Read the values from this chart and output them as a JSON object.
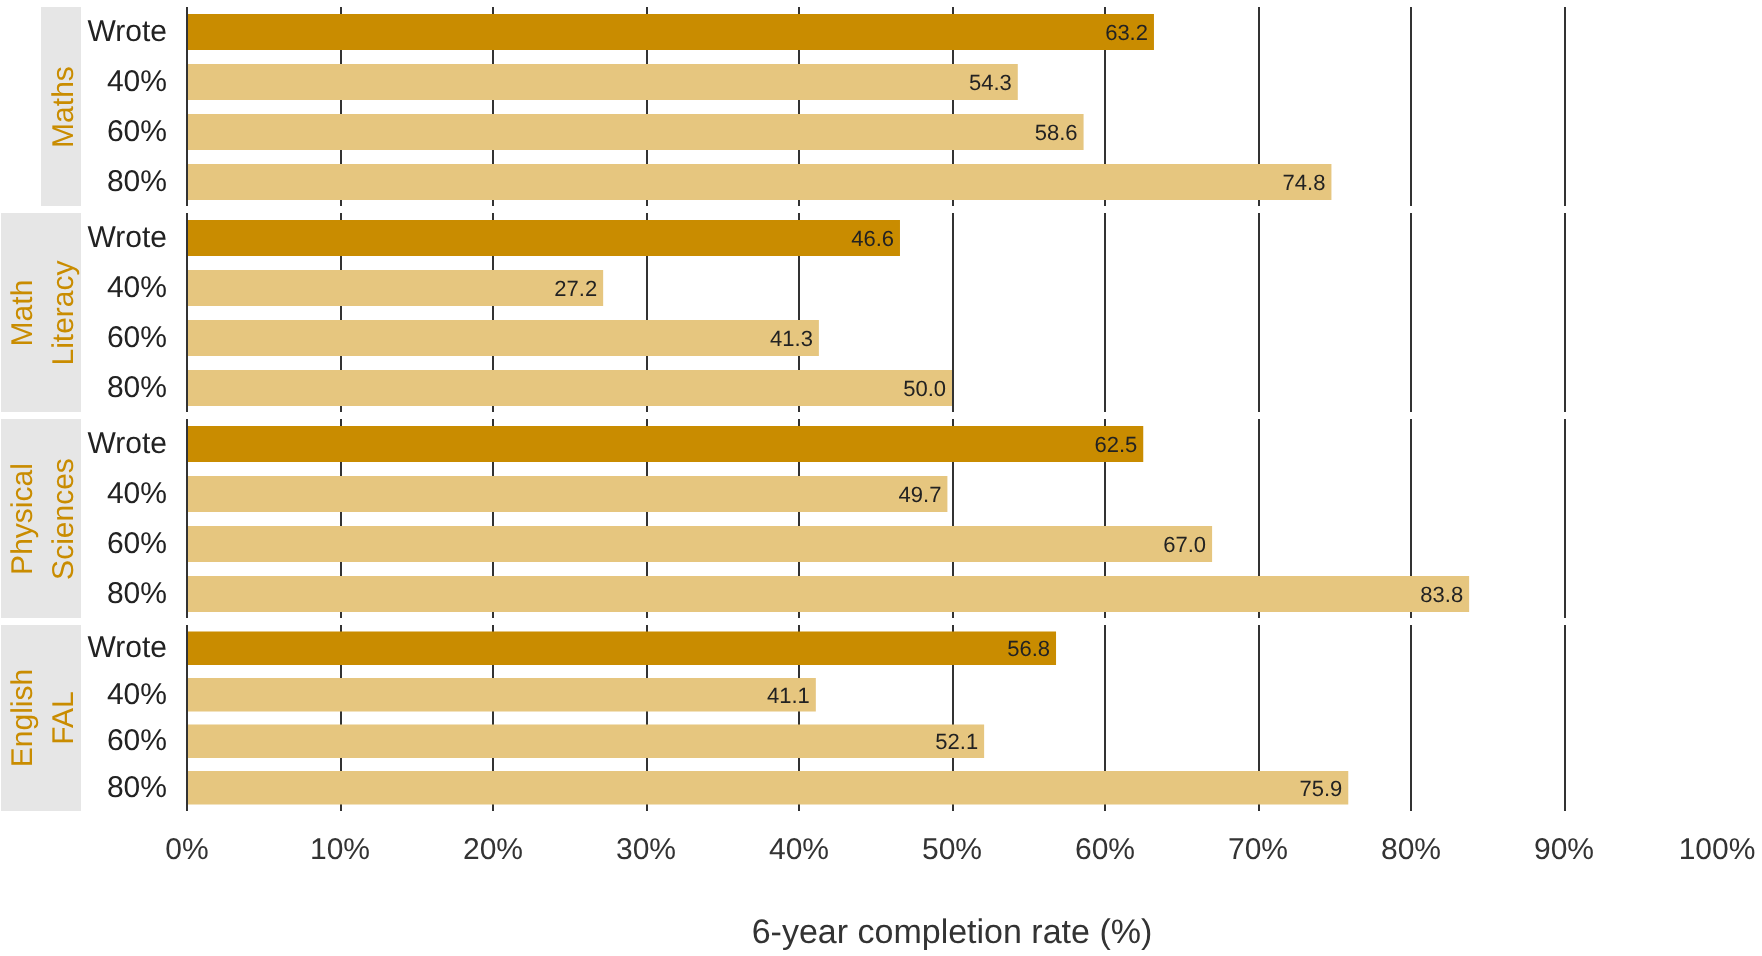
{
  "chart_data": [
    {
      "type": "bar",
      "orientation": "horizontal",
      "title": "Maths",
      "categories": [
        "Wrote",
        "40%",
        "60%",
        "80%"
      ],
      "values": [
        63.2,
        54.3,
        58.6,
        74.8
      ],
      "value_labels": [
        "63.2",
        "54.3",
        "58.6",
        "74.8"
      ],
      "colors": [
        "#c98c00",
        "#e6c67f",
        "#e6c67f",
        "#e6c67f"
      ],
      "xlim": [
        0,
        100
      ],
      "xticks": [
        0,
        10,
        20,
        30,
        40,
        50,
        60,
        70,
        80,
        90,
        100
      ],
      "grid": "x",
      "tick_labels": "y"
    },
    {
      "type": "bar",
      "orientation": "horizontal",
      "title": "Math Literacy",
      "categories": [
        "Wrote",
        "40%",
        "60%",
        "80%"
      ],
      "values": [
        46.6,
        27.2,
        41.3,
        50.0
      ],
      "value_labels": [
        "46.6",
        "27.2",
        "41.3",
        "50.0"
      ],
      "colors": [
        "#c98c00",
        "#e6c67f",
        "#e6c67f",
        "#e6c67f"
      ],
      "xlim": [
        0,
        100
      ],
      "xticks": [
        0,
        10,
        20,
        30,
        40,
        50,
        60,
        70,
        80,
        90,
        100
      ],
      "grid": "x",
      "tick_labels": "y"
    },
    {
      "type": "bar",
      "orientation": "horizontal",
      "title": "Physical Sciences",
      "categories": [
        "Wrote",
        "40%",
        "60%",
        "80%"
      ],
      "values": [
        62.5,
        49.7,
        67.0,
        83.8
      ],
      "value_labels": [
        "62.5",
        "49.7",
        "67.0",
        "83.8"
      ],
      "colors": [
        "#c98c00",
        "#e6c67f",
        "#e6c67f",
        "#e6c67f"
      ],
      "xlim": [
        0,
        100
      ],
      "xticks": [
        0,
        10,
        20,
        30,
        40,
        50,
        60,
        70,
        80,
        90,
        100
      ],
      "grid": "x",
      "tick_labels": "y"
    },
    {
      "type": "bar",
      "orientation": "horizontal",
      "title": "English FAL",
      "categories": [
        "Wrote",
        "40%",
        "60%",
        "80%"
      ],
      "values": [
        56.8,
        41.1,
        52.1,
        75.9
      ],
      "value_labels": [
        "56.8",
        "41.1",
        "52.1",
        "75.9"
      ],
      "colors": [
        "#c98c00",
        "#e6c67f",
        "#e6c67f",
        "#e6c67f"
      ],
      "xlim": [
        0,
        100
      ],
      "xticks": [
        {
          "value": 0,
          "label": "0%"
        },
        {
          "value": 10,
          "label": "10%"
        },
        {
          "value": 20,
          "label": "20%"
        },
        {
          "value": 30,
          "label": "30%"
        },
        {
          "value": 40,
          "label": "40%"
        },
        {
          "value": 50,
          "label": "50%"
        },
        {
          "value": 60,
          "label": "60%"
        },
        {
          "value": 70,
          "label": "70%"
        },
        {
          "value": 80,
          "label": "80%"
        },
        {
          "value": 90,
          "label": "90%"
        },
        {
          "value": 100,
          "label": "100%"
        }
      ],
      "grid": "x",
      "xlabel": "6-year completion rate (%)"
    }
  ]
}
